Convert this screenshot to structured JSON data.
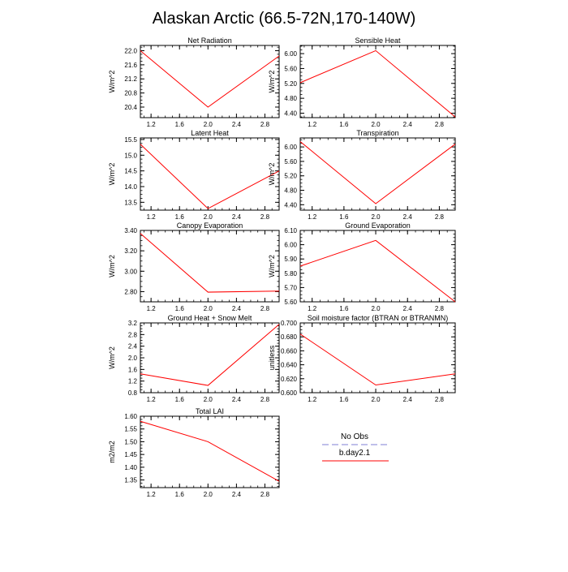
{
  "title": "Alaskan Arctic (66.5-72N,170-140W)",
  "legend": {
    "entries": [
      {
        "label": "No Obs",
        "color": "#9999dd",
        "dashed": true
      },
      {
        "label": "b.day2.1",
        "color": "#ff0000",
        "dashed": false
      }
    ]
  },
  "chart_data": [
    {
      "type": "line",
      "title": "Net Radiation",
      "ylabel": "W/m^2",
      "x": [
        1.05,
        2.0,
        3.0
      ],
      "y": [
        22.0,
        20.4,
        21.85
      ],
      "xlim": [
        1.05,
        3.0
      ],
      "ylim": [
        20.1,
        22.15
      ],
      "xticks": [
        1.2,
        1.6,
        2.0,
        2.4,
        2.8
      ],
      "xtick_labels": [
        "1.2",
        "1.6",
        "2.0",
        "2.4",
        "2.8"
      ],
      "yticks": [
        20.4,
        20.8,
        21.2,
        21.6,
        22.0
      ],
      "ytick_labels": [
        "20.4",
        "20.8",
        "21.2",
        "21.6",
        "22.0"
      ],
      "series": [
        {
          "name": "b.day2.1",
          "color": "#ff0000"
        }
      ]
    },
    {
      "type": "line",
      "title": "Sensible Heat",
      "ylabel": "W/m^2",
      "x": [
        1.05,
        2.0,
        3.0
      ],
      "y": [
        5.22,
        6.08,
        4.3
      ],
      "xlim": [
        1.05,
        3.0
      ],
      "ylim": [
        4.28,
        6.22
      ],
      "xticks": [
        1.2,
        1.6,
        2.0,
        2.4,
        2.8
      ],
      "xtick_labels": [
        "1.2",
        "1.6",
        "2.0",
        "2.4",
        "2.8"
      ],
      "yticks": [
        4.4,
        4.8,
        5.2,
        5.6,
        6.0
      ],
      "ytick_labels": [
        "4.40",
        "4.80",
        "5.20",
        "5.60",
        "6.00"
      ],
      "series": [
        {
          "name": "b.day2.1",
          "color": "#ff0000"
        }
      ]
    },
    {
      "type": "line",
      "title": "Latent Heat",
      "ylabel": "W/m^2",
      "x": [
        1.05,
        2.0,
        3.0
      ],
      "y": [
        15.35,
        13.3,
        14.5
      ],
      "xlim": [
        1.05,
        3.0
      ],
      "ylim": [
        13.25,
        15.55
      ],
      "xticks": [
        1.2,
        1.6,
        2.0,
        2.4,
        2.8
      ],
      "xtick_labels": [
        "1.2",
        "1.6",
        "2.0",
        "2.4",
        "2.8"
      ],
      "yticks": [
        13.5,
        14.0,
        14.5,
        15.0,
        15.5
      ],
      "ytick_labels": [
        "13.5",
        "14.0",
        "14.5",
        "15.0",
        "15.5"
      ],
      "series": [
        {
          "name": "b.day2.1",
          "color": "#ff0000"
        }
      ]
    },
    {
      "type": "line",
      "title": "Transpiration",
      "ylabel": "W/m^2",
      "x": [
        1.05,
        2.0,
        3.0
      ],
      "y": [
        6.15,
        4.43,
        6.08
      ],
      "xlim": [
        1.05,
        3.0
      ],
      "ylim": [
        4.25,
        6.25
      ],
      "xticks": [
        1.2,
        1.6,
        2.0,
        2.4,
        2.8
      ],
      "xtick_labels": [
        "1.2",
        "1.6",
        "2.0",
        "2.4",
        "2.8"
      ],
      "yticks": [
        4.4,
        4.8,
        5.2,
        5.6,
        6.0
      ],
      "ytick_labels": [
        "4.40",
        "4.80",
        "5.20",
        "5.60",
        "6.00"
      ],
      "series": [
        {
          "name": "b.day2.1",
          "color": "#ff0000"
        }
      ]
    },
    {
      "type": "line",
      "title": "Canopy Evaporation",
      "ylabel": "W/m^2",
      "x": [
        1.05,
        2.0,
        3.0
      ],
      "y": [
        3.37,
        2.795,
        2.805
      ],
      "xlim": [
        1.05,
        3.0
      ],
      "ylim": [
        2.7,
        3.4
      ],
      "xticks": [
        1.2,
        1.6,
        2.0,
        2.4,
        2.8
      ],
      "xtick_labels": [
        "1.2",
        "1.6",
        "2.0",
        "2.4",
        "2.8"
      ],
      "yticks": [
        2.8,
        3.0,
        3.2,
        3.4
      ],
      "ytick_labels": [
        "2.80",
        "3.00",
        "3.20",
        "3.40"
      ],
      "series": [
        {
          "name": "b.day2.1",
          "color": "#ff0000"
        }
      ]
    },
    {
      "type": "line",
      "title": "Ground Evaporation",
      "ylabel": "W/m^2",
      "x": [
        1.05,
        2.0,
        3.0
      ],
      "y": [
        5.85,
        6.03,
        5.6
      ],
      "xlim": [
        1.05,
        3.0
      ],
      "ylim": [
        5.6,
        6.1
      ],
      "xticks": [
        1.2,
        1.6,
        2.0,
        2.4,
        2.8
      ],
      "xtick_labels": [
        "1.2",
        "1.6",
        "2.0",
        "2.4",
        "2.8"
      ],
      "yticks": [
        5.6,
        5.7,
        5.8,
        5.9,
        6.0,
        6.1
      ],
      "ytick_labels": [
        "5.60",
        "5.70",
        "5.80",
        "5.90",
        "6.00",
        "6.10"
      ],
      "series": [
        {
          "name": "b.day2.1",
          "color": "#ff0000"
        }
      ]
    },
    {
      "type": "line",
      "title": "Ground Heat + Snow Melt",
      "ylabel": "W/m^2",
      "x": [
        1.05,
        2.0,
        3.0
      ],
      "y": [
        1.45,
        1.05,
        3.15
      ],
      "xlim": [
        1.05,
        3.0
      ],
      "ylim": [
        0.8,
        3.2
      ],
      "xticks": [
        1.2,
        1.6,
        2.0,
        2.4,
        2.8
      ],
      "xtick_labels": [
        "1.2",
        "1.6",
        "2.0",
        "2.4",
        "2.8"
      ],
      "yticks": [
        0.8,
        1.2,
        1.6,
        2.0,
        2.4,
        2.8,
        3.2
      ],
      "ytick_labels": [
        "0.8",
        "1.2",
        "1.6",
        "2.0",
        "2.4",
        "2.8",
        "3.2"
      ],
      "series": [
        {
          "name": "b.day2.1",
          "color": "#ff0000"
        }
      ]
    },
    {
      "type": "line",
      "title": "Soil moisture factor (BTRAN or BTRANMN)",
      "ylabel": "unitless",
      "x": [
        1.05,
        2.0,
        3.0
      ],
      "y": [
        0.684,
        0.611,
        0.627
      ],
      "xlim": [
        1.05,
        3.0
      ],
      "ylim": [
        0.6,
        0.7
      ],
      "xticks": [
        1.2,
        1.6,
        2.0,
        2.4,
        2.8
      ],
      "xtick_labels": [
        "1.2",
        "1.6",
        "2.0",
        "2.4",
        "2.8"
      ],
      "yticks": [
        0.6,
        0.62,
        0.64,
        0.66,
        0.68,
        0.7
      ],
      "ytick_labels": [
        "0.600",
        "0.620",
        "0.640",
        "0.660",
        "0.680",
        "0.700"
      ],
      "series": [
        {
          "name": "b.day2.1",
          "color": "#ff0000"
        }
      ]
    },
    {
      "type": "line",
      "title": "Total LAI",
      "ylabel": "m2/m2",
      "x": [
        1.05,
        2.0,
        3.0
      ],
      "y": [
        1.58,
        1.5,
        1.345
      ],
      "xlim": [
        1.05,
        3.0
      ],
      "ylim": [
        1.32,
        1.6
      ],
      "xticks": [
        1.2,
        1.6,
        2.0,
        2.4,
        2.8
      ],
      "xtick_labels": [
        "1.2",
        "1.6",
        "2.0",
        "2.4",
        "2.8"
      ],
      "yticks": [
        1.35,
        1.4,
        1.45,
        1.5,
        1.55,
        1.6
      ],
      "ytick_labels": [
        "1.35",
        "1.40",
        "1.45",
        "1.50",
        "1.55",
        "1.60"
      ],
      "series": [
        {
          "name": "b.day2.1",
          "color": "#ff0000"
        }
      ]
    }
  ]
}
